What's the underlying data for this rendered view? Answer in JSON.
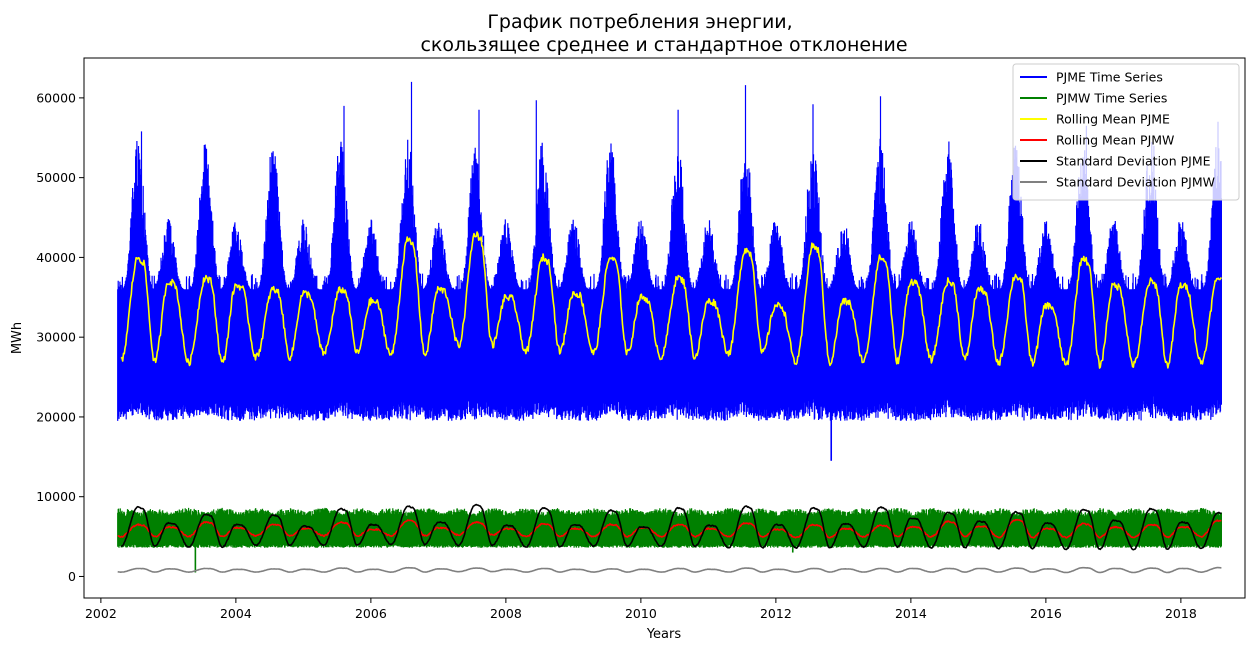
{
  "chart_data": {
    "type": "line",
    "title_line1": "График потребления энергии,",
    "title_line2": "скользящее среднее и стандартное отклонение",
    "xlabel": "Years",
    "ylabel": "MWh",
    "xlim": [
      2001.75,
      2018.95
    ],
    "ylim": [
      -2700,
      65000
    ],
    "xticks": [
      2002,
      2004,
      2006,
      2008,
      2010,
      2012,
      2014,
      2016,
      2018
    ],
    "xtick_labels": [
      "2002",
      "2004",
      "2006",
      "2008",
      "2010",
      "2012",
      "2014",
      "2016",
      "2018"
    ],
    "yticks": [
      0,
      10000,
      20000,
      30000,
      40000,
      50000,
      60000
    ],
    "ytick_labels": [
      "0",
      "10000",
      "20000",
      "30000",
      "40000",
      "50000",
      "60000"
    ],
    "grid": false,
    "legend_position": "top-right",
    "x_range": [
      2002.25,
      2018.6
    ],
    "series": [
      {
        "name": "PJME Time Series",
        "color": "#0000ff",
        "kind": "envelope",
        "lower_base": 21500,
        "lower_amplitude": 2000,
        "upper_winter": 45000,
        "upper_summer": 55000,
        "peak_values": [
          {
            "year": 2002.6,
            "value": 55800
          },
          {
            "year": 2003.6,
            "value": 49000
          },
          {
            "year": 2004.6,
            "value": 47000
          },
          {
            "year": 2005.6,
            "value": 59000
          },
          {
            "year": 2006.6,
            "value": 62000
          },
          {
            "year": 2007.6,
            "value": 58500
          },
          {
            "year": 2008.45,
            "value": 59700
          },
          {
            "year": 2009.6,
            "value": 50000
          },
          {
            "year": 2010.55,
            "value": 58500
          },
          {
            "year": 2011.55,
            "value": 61600
          },
          {
            "year": 2012.55,
            "value": 59200
          },
          {
            "year": 2013.55,
            "value": 60200
          },
          {
            "year": 2014.6,
            "value": 51000
          },
          {
            "year": 2015.55,
            "value": 54000
          },
          {
            "year": 2016.6,
            "value": 56500
          },
          {
            "year": 2017.6,
            "value": 54000
          },
          {
            "year": 2018.55,
            "value": 57000
          }
        ],
        "spikes": [
          {
            "year": 2012.82,
            "value": 14500
          }
        ]
      },
      {
        "name": "PJMW Time Series",
        "color": "#008000",
        "kind": "envelope",
        "lower_base": 4000,
        "lower_amplitude": 400,
        "upper_base": 7200,
        "upper_amplitude": 1400,
        "spikes": [
          {
            "year": 2003.4,
            "value": 500
          },
          {
            "year": 2012.25,
            "value": 3000
          }
        ]
      },
      {
        "name": "Rolling Mean PJME",
        "color": "#ffff00",
        "kind": "seasonal",
        "base": 29500,
        "summer_peaks": [
          40000,
          37500,
          36000,
          36000,
          42200,
          43000,
          40000,
          40000,
          37500,
          41000,
          41500,
          40000,
          37000,
          37700,
          40000,
          37000,
          37500
        ],
        "winter_peaks": [
          35500,
          37000,
          36500,
          35500,
          34500,
          36000,
          35000,
          35500,
          35000,
          34500,
          34000,
          34500,
          37000,
          36000,
          34000,
          36500,
          36500
        ],
        "troughs": [
          27000,
          26800,
          27500,
          28000,
          27800,
          29000,
          28200,
          28000,
          27500,
          28000,
          26800,
          27000,
          27200,
          26800,
          26500,
          26500,
          26800
        ]
      },
      {
        "name": "Rolling Mean PJMW",
        "color": "#ff0000",
        "kind": "seasonal",
        "base": 5500,
        "summer_peaks": [
          6500,
          6800,
          6500,
          6800,
          7000,
          6800,
          6600,
          6500,
          6500,
          6700,
          6500,
          6400,
          6900,
          7100,
          6600,
          6500,
          7000
        ],
        "winter_peaks": [
          6000,
          6200,
          6100,
          6000,
          5900,
          6100,
          6000,
          6000,
          6100,
          6000,
          5900,
          6000,
          6200,
          6300,
          6000,
          6200,
          6200
        ],
        "troughs": [
          5000,
          5000,
          5100,
          5100,
          5100,
          5200,
          5000,
          5000,
          5000,
          5000,
          4900,
          5000,
          5000,
          4900,
          4900,
          4900,
          5000
        ]
      },
      {
        "name": "Standard Deviation PJME",
        "color": "#000000",
        "kind": "seasonal",
        "base": 4500,
        "summer_peaks": [
          8700,
          7800,
          7700,
          8500,
          8800,
          9000,
          8600,
          8300,
          8600,
          8800,
          8600,
          8700,
          8000,
          8100,
          8400,
          8500,
          8000
        ],
        "winter_peaks": [
          5500,
          6700,
          6500,
          6300,
          6500,
          6800,
          6400,
          6500,
          6200,
          6400,
          6500,
          6600,
          7300,
          6900,
          6700,
          7000,
          6800
        ],
        "troughs": [
          3800,
          3700,
          3900,
          3900,
          4000,
          3900,
          3700,
          3800,
          3800,
          3600,
          3600,
          3700,
          3600,
          3500,
          3400,
          3400,
          3500
        ]
      },
      {
        "name": "Standard Deviation PJMW",
        "color": "#808080",
        "kind": "seasonal",
        "base": 750,
        "summer_peaks": [
          1000,
          1000,
          950,
          1050,
          1100,
          1050,
          1000,
          950,
          1000,
          1050,
          1000,
          1000,
          1000,
          1050,
          1100,
          1050,
          1100
        ],
        "winter_peaks": [
          900,
          950,
          900,
          900,
          900,
          950,
          900,
          900,
          900,
          900,
          900,
          950,
          1000,
          1000,
          950,
          1000,
          1000
        ],
        "troughs": [
          550,
          550,
          550,
          550,
          550,
          600,
          550,
          550,
          550,
          550,
          550,
          550,
          550,
          550,
          500,
          500,
          550
        ]
      }
    ]
  }
}
